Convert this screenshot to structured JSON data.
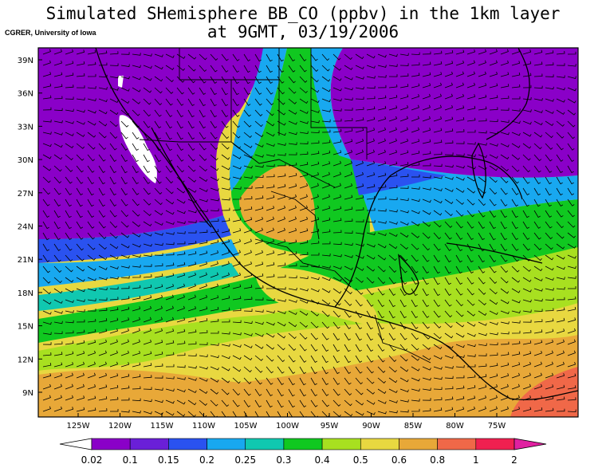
{
  "title_line1": "Simulated SHemisphere BB_CO (ppbv) in the 1km layer",
  "title_line2": "at 9GMT, 03/19/2006",
  "credit": "CGRER, University of Iowa",
  "lat_labels": [
    "39N",
    "36N",
    "33N",
    "30N",
    "27N",
    "24N",
    "21N",
    "18N",
    "15N",
    "12N",
    "9N"
  ],
  "lon_labels": [
    "125W",
    "120W",
    "115W",
    "110W",
    "105W",
    "100W",
    "95W",
    "90W",
    "85W",
    "80W",
    "75W"
  ],
  "colorbar": {
    "labels": [
      "0.02",
      "0.1",
      "0.15",
      "0.2",
      "0.25",
      "0.3",
      "0.4",
      "0.5",
      "0.6",
      "0.8",
      "1",
      "2"
    ],
    "colors": [
      "#ffffff",
      "#8a00c8",
      "#6a1fd8",
      "#2a52f0",
      "#18a8f0",
      "#10c8b0",
      "#10c820",
      "#a8e020",
      "#e8d840",
      "#e8a838",
      "#f06848",
      "#f02050",
      "#e020a0"
    ]
  }
}
